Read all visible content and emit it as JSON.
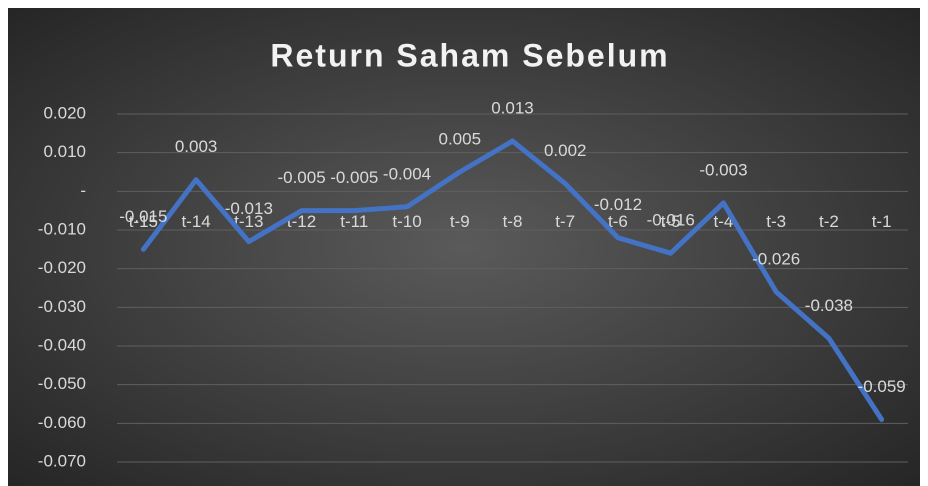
{
  "chart_data": {
    "type": "line",
    "title": "Return Saham Sebelum",
    "categories": [
      "t-15",
      "t-14",
      "t-13",
      "t-12",
      "t-11",
      "t-10",
      "t-9",
      "t-8",
      "t-7",
      "t-6",
      "t-5",
      "t-4",
      "t-3",
      "t-2",
      "t-1"
    ],
    "series": [
      {
        "name": "Return Saham Sebelum",
        "color": "#4472c4",
        "values": [
          -0.015,
          0.003,
          -0.013,
          -0.005,
          -0.005,
          -0.004,
          0.005,
          0.013,
          0.002,
          -0.012,
          -0.016,
          -0.003,
          -0.026,
          -0.038,
          -0.059
        ]
      }
    ],
    "ylim": [
      -0.07,
      0.02
    ],
    "yticks": [
      {
        "value": 0.02,
        "label": "0.020"
      },
      {
        "value": 0.01,
        "label": "0.010"
      },
      {
        "value": 0,
        "label": "-"
      },
      {
        "value": -0.01,
        "label": "-0.010"
      },
      {
        "value": -0.02,
        "label": "-0.020"
      },
      {
        "value": -0.03,
        "label": "-0.030"
      },
      {
        "value": -0.04,
        "label": "-0.040"
      },
      {
        "value": -0.05,
        "label": "-0.050"
      },
      {
        "value": -0.06,
        "label": "-0.060"
      },
      {
        "value": -0.07,
        "label": "-0.070"
      }
    ],
    "grid": true
  }
}
